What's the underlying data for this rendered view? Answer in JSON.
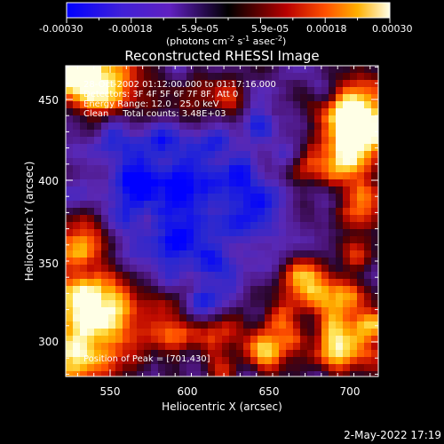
{
  "colorbar": {
    "tick_labels": [
      "-0.00030",
      "-0.00018",
      "-5.9e-05",
      "5.9e-05",
      "0.00018",
      "0.00030"
    ],
    "unit_label_prefix": "(photons cm",
    "unit_exp1": "-2",
    "unit_mid": " s",
    "unit_exp2": "-1",
    "unit_suffix": " asec",
    "unit_exp3": "-2",
    "unit_close": ")"
  },
  "plot": {
    "title": "Reconstructed RHESSI Image",
    "xlabel": "Heliocentric X (arcsec)",
    "ylabel": "Heliocentric Y (arcsec)",
    "x_ticks": [
      "550",
      "600",
      "650",
      "700"
    ],
    "y_ticks": [
      "300",
      "350",
      "400",
      "450"
    ],
    "annotations": {
      "line1": "28-Oct-2002 01:12:00.000 to 01:17:16.000",
      "line2": "Detectors: 3F 4F 5F 6F 7F 8F, Att 0",
      "line3": "Energy Range: 12.0 - 25.0 keV",
      "line4": "Clean     Total counts: 3.48E+03",
      "peak": "Position of Peak = [701,430]"
    }
  },
  "footer": {
    "timestamp": "2-May-2022 17:19"
  },
  "chart_data": {
    "type": "heatmap",
    "title": "Reconstructed RHESSI Image",
    "xlabel": "Heliocentric X (arcsec)",
    "ylabel": "Heliocentric Y (arcsec)",
    "xlim": [
      522,
      714
    ],
    "ylim": [
      278,
      472
    ],
    "colorbar_range": [
      -0.0003,
      0.0003
    ],
    "peak_position": [
      701,
      430
    ]
  }
}
